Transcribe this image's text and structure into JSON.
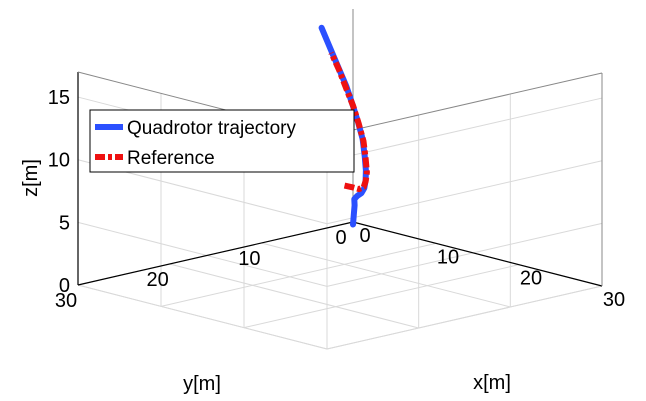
{
  "chart_data": {
    "type": "line",
    "projection": "3d",
    "title": "",
    "xlabel": "x[m]",
    "ylabel": "y[m]",
    "zlabel": "z[m]",
    "xlim": [
      0,
      30
    ],
    "ylim": [
      0,
      30
    ],
    "zlim": [
      0,
      17
    ],
    "x_ticks": [
      "0",
      "10",
      "20",
      "30"
    ],
    "y_ticks": [
      "0",
      "10",
      "20",
      "30"
    ],
    "z_ticks": [
      "0",
      "5",
      "10",
      "15"
    ],
    "grid": true,
    "legend_position": "upper-left",
    "series": [
      {
        "name": "Quadrotor trajectory",
        "color": "#2b50ff",
        "style": "solid",
        "points": [
          [
            0,
            0,
            -0.2
          ],
          [
            0.1,
            0.0,
            0.6
          ],
          [
            0.3,
            0.1,
            1.4
          ],
          [
            0.6,
            0.4,
            2.0
          ],
          [
            1.2,
            0.6,
            2.4
          ],
          [
            2.0,
            0.9,
            2.8
          ],
          [
            2.8,
            1.3,
            3.4
          ],
          [
            3.5,
            1.8,
            4.2
          ],
          [
            4.1,
            2.3,
            5.2
          ],
          [
            4.5,
            2.8,
            6.5
          ],
          [
            4.8,
            3.3,
            8.0
          ],
          [
            4.9,
            3.9,
            9.5
          ],
          [
            4.9,
            4.5,
            11.0
          ],
          [
            4.7,
            5.0,
            12.5
          ],
          [
            4.3,
            5.5,
            14.0
          ],
          [
            3.9,
            6.0,
            15.5
          ],
          [
            3.5,
            6.6,
            17.2
          ]
        ]
      },
      {
        "name": "Reference",
        "color": "#ee1111",
        "style": "dashed",
        "points": [
          [
            -0.8,
            0.2,
            2.8
          ],
          [
            0.5,
            0.4,
            2.9
          ],
          [
            1.5,
            0.7,
            3.0
          ],
          [
            2.5,
            1.1,
            3.4
          ],
          [
            3.3,
            1.6,
            4.1
          ],
          [
            4.0,
            2.1,
            5.0
          ],
          [
            4.5,
            2.7,
            6.3
          ],
          [
            4.8,
            3.2,
            7.8
          ],
          [
            4.9,
            3.8,
            9.3
          ],
          [
            4.9,
            4.4,
            10.8
          ],
          [
            4.7,
            5.0,
            12.3
          ],
          [
            4.4,
            5.5,
            13.8
          ],
          [
            4.0,
            6.0,
            15.2
          ]
        ]
      }
    ]
  }
}
